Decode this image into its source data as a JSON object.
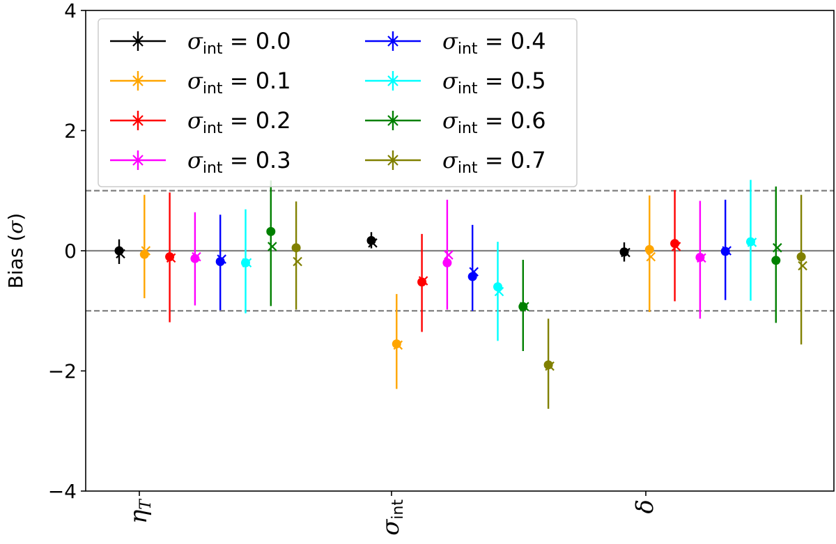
{
  "chart_data": {
    "type": "scatter",
    "title": "",
    "xlabel": "",
    "ylabel": "Bias (σ)",
    "ylabel_parts": {
      "text": "Bias (",
      "symbol": "σ",
      "close": ")"
    },
    "ylim": [
      -4,
      4
    ],
    "yticks": [
      -4,
      -2,
      0,
      2,
      4
    ],
    "ytick_labels": [
      "−4",
      "−2",
      "0",
      "2",
      "4"
    ],
    "categories": [
      {
        "key": "eta",
        "label": "η",
        "sub": "T"
      },
      {
        "key": "sigma",
        "label": "σ",
        "sub": "int"
      },
      {
        "key": "delta",
        "label": "δ",
        "sub": ""
      }
    ],
    "reference_lines": [
      {
        "y": 0,
        "style": "solid",
        "color": "#808080"
      },
      {
        "y": 1,
        "style": "dashed",
        "color": "#808080"
      },
      {
        "y": -1,
        "style": "dashed",
        "color": "#808080"
      }
    ],
    "legend": {
      "location": "top-left",
      "columns": 2
    },
    "marker_notes": {
      "circle": "dot estimate",
      "cross": "x estimate"
    },
    "series": [
      {
        "name": "σint = 0.0",
        "sym": "σ",
        "sub": "int",
        "eq": " = 0.0",
        "color": "#000000",
        "points": [
          {
            "cat": 0,
            "dot": 0.0,
            "cross": -0.05,
            "lo": -0.22,
            "hi": 0.19
          },
          {
            "cat": 1,
            "dot": 0.17,
            "cross": 0.13,
            "lo": 0.04,
            "hi": 0.31
          },
          {
            "cat": 2,
            "dot": -0.02,
            "cross": -0.03,
            "lo": -0.18,
            "hi": 0.14
          }
        ]
      },
      {
        "name": "σint = 0.1",
        "sym": "σ",
        "sub": "int",
        "eq": " = 0.1",
        "color": "#FFA500",
        "points": [
          {
            "cat": 0,
            "dot": -0.06,
            "cross": 0.0,
            "lo": -0.79,
            "hi": 0.93
          },
          {
            "cat": 1,
            "dot": -1.55,
            "cross": -1.57,
            "lo": -2.3,
            "hi": -0.72
          },
          {
            "cat": 2,
            "dot": 0.02,
            "cross": -0.1,
            "lo": -1.02,
            "hi": 0.92
          }
        ]
      },
      {
        "name": "σint = 0.2",
        "sym": "σ",
        "sub": "int",
        "eq": " = 0.2",
        "color": "#FF0000",
        "points": [
          {
            "cat": 0,
            "dot": -0.1,
            "cross": -0.12,
            "lo": -1.19,
            "hi": 0.97
          },
          {
            "cat": 1,
            "dot": -0.52,
            "cross": -0.5,
            "lo": -1.35,
            "hi": 0.28
          },
          {
            "cat": 2,
            "dot": 0.12,
            "cross": 0.07,
            "lo": -0.84,
            "hi": 1.01
          }
        ]
      },
      {
        "name": "σint = 0.3",
        "sym": "σ",
        "sub": "int",
        "eq": " = 0.3",
        "color": "#FF00FF",
        "points": [
          {
            "cat": 0,
            "dot": -0.13,
            "cross": -0.1,
            "lo": -0.91,
            "hi": 0.64
          },
          {
            "cat": 1,
            "dot": -0.2,
            "cross": -0.07,
            "lo": -0.98,
            "hi": 0.85
          },
          {
            "cat": 2,
            "dot": -0.11,
            "cross": -0.12,
            "lo": -1.13,
            "hi": 0.83
          }
        ]
      },
      {
        "name": "σint = 0.4",
        "sym": "σ",
        "sub": "int",
        "eq": " = 0.4",
        "color": "#0000FF",
        "points": [
          {
            "cat": 0,
            "dot": -0.18,
            "cross": -0.14,
            "lo": -0.99,
            "hi": 0.6
          },
          {
            "cat": 1,
            "dot": -0.43,
            "cross": -0.35,
            "lo": -1.0,
            "hi": 0.43
          },
          {
            "cat": 2,
            "dot": -0.01,
            "cross": 0.0,
            "lo": -0.82,
            "hi": 0.85
          }
        ]
      },
      {
        "name": "σint = 0.5",
        "sym": "σ",
        "sub": "int",
        "eq": " = 0.5",
        "color": "#00FFFF",
        "points": [
          {
            "cat": 0,
            "dot": -0.2,
            "cross": -0.2,
            "lo": -1.04,
            "hi": 0.69
          },
          {
            "cat": 1,
            "dot": -0.6,
            "cross": -0.68,
            "lo": -1.5,
            "hi": 0.15
          },
          {
            "cat": 2,
            "dot": 0.15,
            "cross": 0.14,
            "lo": -0.83,
            "hi": 1.18
          }
        ]
      },
      {
        "name": "σint = 0.6",
        "sym": "σ",
        "sub": "int",
        "eq": " = 0.6",
        "color": "#008000",
        "points": [
          {
            "cat": 0,
            "dot": 0.32,
            "cross": 0.07,
            "lo": -0.92,
            "hi": 1.17
          },
          {
            "cat": 1,
            "dot": -0.93,
            "cross": -0.93,
            "lo": -1.67,
            "hi": -0.15
          },
          {
            "cat": 2,
            "dot": -0.16,
            "cross": 0.05,
            "lo": -1.2,
            "hi": 1.07
          }
        ]
      },
      {
        "name": "σint = 0.7",
        "sym": "σ",
        "sub": "int",
        "eq": " = 0.7",
        "color": "#808000",
        "points": [
          {
            "cat": 0,
            "dot": 0.05,
            "cross": -0.18,
            "lo": -0.98,
            "hi": 0.82
          },
          {
            "cat": 1,
            "dot": -1.9,
            "cross": -1.92,
            "lo": -2.63,
            "hi": -1.13
          },
          {
            "cat": 2,
            "dot": -0.1,
            "cross": -0.25,
            "lo": -1.56,
            "hi": 0.93
          }
        ]
      }
    ]
  }
}
